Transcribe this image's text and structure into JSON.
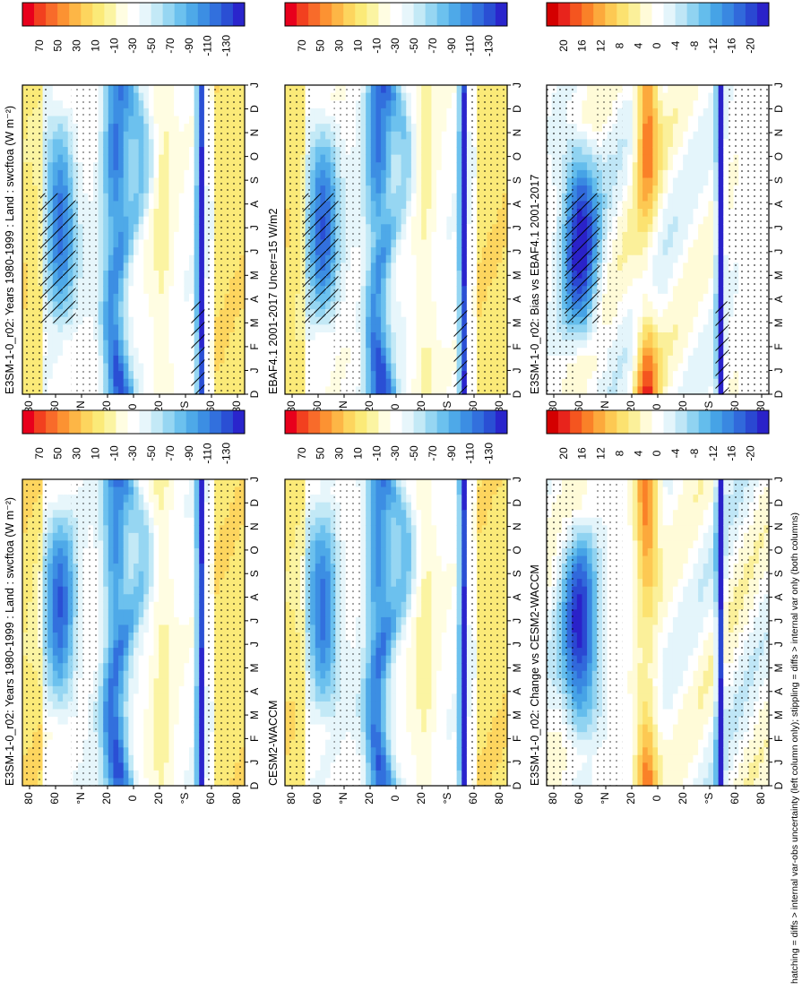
{
  "figure": {
    "footnote": "hatching = diffs > internal var-obs uncertainty (left column only); stippling = diffs > internal var only (both columns)",
    "y_unit_n": "°N",
    "y_unit_s": "°S"
  },
  "chart_data": [
    {
      "type": "heatmap",
      "id": "left-top",
      "title": "E3SM-1-0_r02: Years 1980-1999 : Land : swcftoa (W m⁻²)",
      "xlabel": "",
      "ylabel": "",
      "x_ticks": [
        "D",
        "J",
        "F",
        "M",
        "A",
        "M",
        "J",
        "J",
        "A",
        "S",
        "O",
        "N",
        "D",
        "J"
      ],
      "y_ticks": [
        "80",
        "60",
        "°N",
        "20",
        "0",
        "20",
        "°S",
        "60",
        "80"
      ],
      "colorbar": {
        "labels": [
          "70",
          "50",
          "30",
          "10",
          "-10",
          "-30",
          "-50",
          "-70",
          "-90",
          "-110",
          "-130"
        ]
      },
      "hatching": true,
      "stippling": true
    },
    {
      "type": "heatmap",
      "id": "left-mid",
      "title": "EBAF4.1 2001-2017 Uncer=15 W/m2",
      "xlabel": "",
      "ylabel": "",
      "x_ticks": [
        "D",
        "J",
        "F",
        "M",
        "A",
        "M",
        "J",
        "J",
        "A",
        "S",
        "O",
        "N",
        "D",
        "J"
      ],
      "y_ticks": [
        "80",
        "60",
        "°N",
        "20",
        "0",
        "20",
        "°S",
        "60",
        "80"
      ],
      "colorbar": {
        "labels": [
          "70",
          "50",
          "30",
          "10",
          "-10",
          "-30",
          "-50",
          "-70",
          "-90",
          "-110",
          "-130"
        ]
      },
      "hatching": true,
      "stippling": true
    },
    {
      "type": "heatmap",
      "id": "left-bot",
      "title": "E3SM-1-0_r02: Bias vs EBAF4.1 2001-2017",
      "xlabel": "",
      "ylabel": "",
      "x_ticks": [
        "D",
        "J",
        "F",
        "M",
        "A",
        "M",
        "J",
        "J",
        "A",
        "S",
        "O",
        "N",
        "D",
        "J"
      ],
      "y_ticks": [
        "80",
        "60",
        "°N",
        "20",
        "0",
        "20",
        "°S",
        "60",
        "80"
      ],
      "colorbar": {
        "labels": [
          "20",
          "16",
          "12",
          "8",
          "4",
          "0",
          "-4",
          "-8",
          "-12",
          "-16",
          "-20"
        ]
      },
      "hatching": true,
      "stippling": true
    },
    {
      "type": "heatmap",
      "id": "right-top",
      "title": "E3SM-1-0_r02: Years 1980-1999 : Land : swcftoa (W m⁻²)",
      "xlabel": "",
      "ylabel": "",
      "x_ticks": [
        "D",
        "J",
        "F",
        "M",
        "A",
        "M",
        "J",
        "J",
        "A",
        "S",
        "O",
        "N",
        "D",
        "J"
      ],
      "y_ticks": [
        "80",
        "60",
        "°N",
        "20",
        "0",
        "20",
        "°S",
        "60",
        "80"
      ],
      "colorbar": {
        "labels": [
          "70",
          "50",
          "30",
          "10",
          "-10",
          "-30",
          "-50",
          "-70",
          "-90",
          "-110",
          "-130"
        ]
      },
      "hatching": false,
      "stippling": true
    },
    {
      "type": "heatmap",
      "id": "right-mid",
      "title": "CESM2-WACCM",
      "xlabel": "",
      "ylabel": "",
      "x_ticks": [
        "D",
        "J",
        "F",
        "M",
        "A",
        "M",
        "J",
        "J",
        "A",
        "S",
        "O",
        "N",
        "D",
        "J"
      ],
      "y_ticks": [
        "80",
        "60",
        "°N",
        "20",
        "0",
        "20",
        "°S",
        "60",
        "80"
      ],
      "colorbar": {
        "labels": [
          "70",
          "50",
          "30",
          "10",
          "-10",
          "-30",
          "-50",
          "-70",
          "-90",
          "-110",
          "-130"
        ]
      },
      "hatching": false,
      "stippling": true
    },
    {
      "type": "heatmap",
      "id": "right-bot",
      "title": "E3SM-1-0_r02: Change vs CESM2-WACCM",
      "xlabel": "",
      "ylabel": "",
      "x_ticks": [
        "D",
        "J",
        "F",
        "M",
        "A",
        "M",
        "J",
        "J",
        "A",
        "S",
        "O",
        "N",
        "D",
        "J"
      ],
      "y_ticks": [
        "80",
        "60",
        "°N",
        "20",
        "0",
        "20",
        "°S",
        "60",
        "80"
      ],
      "colorbar": {
        "labels": [
          "20",
          "16",
          "12",
          "8",
          "4",
          "0",
          "-4",
          "-8",
          "-12",
          "-16",
          "-20"
        ]
      },
      "hatching": false,
      "stippling": true
    }
  ],
  "palettes": {
    "absolute": [
      "#e8001c",
      "#f2401f",
      "#f86b2a",
      "#fc9232",
      "#fdb646",
      "#fdd55e",
      "#fbea78",
      "#fbf4a2",
      "#fffde2",
      "#ffffff",
      "#e7f6fb",
      "#c3e9f6",
      "#96d6f2",
      "#6cc1ee",
      "#4ea9e8",
      "#3c8ee3",
      "#3270dd",
      "#2a4fd4",
      "#2a25cc"
    ],
    "diff": [
      "#d40000",
      "#e8241c",
      "#f4551f",
      "#fa8128",
      "#fca93c",
      "#fdc953",
      "#fce270",
      "#fbf09a",
      "#fffbd8",
      "#ffffff",
      "#e4f5fb",
      "#bfe6f6",
      "#90d3f1",
      "#64bdec",
      "#46a3e6",
      "#3988e1",
      "#3169db",
      "#2a48d2",
      "#2a22c9"
    ]
  }
}
